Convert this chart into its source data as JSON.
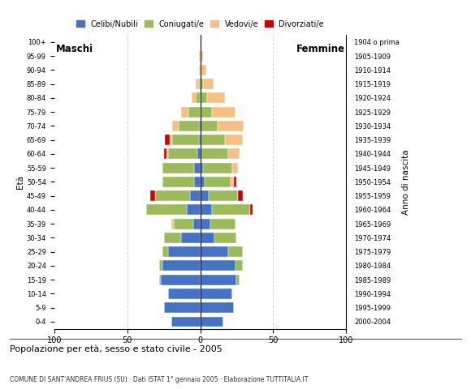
{
  "age_groups_bottom_top": [
    "0-4",
    "5-9",
    "10-14",
    "15-19",
    "20-24",
    "25-29",
    "30-34",
    "35-39",
    "40-44",
    "45-49",
    "50-54",
    "55-59",
    "60-64",
    "65-69",
    "70-74",
    "75-79",
    "80-84",
    "85-89",
    "90-94",
    "95-99",
    "100+"
  ],
  "birth_years_bottom_top": [
    "2000-2004",
    "1995-1999",
    "1990-1994",
    "1985-1989",
    "1980-1984",
    "1975-1979",
    "1970-1974",
    "1965-1969",
    "1960-1964",
    "1955-1959",
    "1950-1954",
    "1945-1949",
    "1940-1944",
    "1935-1939",
    "1930-1934",
    "1925-1929",
    "1920-1924",
    "1915-1919",
    "1910-1914",
    "1905-1909",
    "1904 o prima"
  ],
  "male_celibi": [
    20,
    25,
    22,
    27,
    26,
    22,
    13,
    5,
    9,
    7,
    4,
    4,
    2,
    1,
    1,
    0,
    0,
    0,
    0,
    0,
    0
  ],
  "male_coniugati": [
    0,
    0,
    0,
    1,
    2,
    4,
    12,
    13,
    28,
    24,
    22,
    22,
    20,
    18,
    14,
    8,
    3,
    1,
    0,
    0,
    0
  ],
  "male_vedovi": [
    0,
    0,
    0,
    0,
    0,
    0,
    0,
    2,
    0,
    0,
    0,
    0,
    1,
    2,
    4,
    5,
    3,
    2,
    1,
    1,
    0
  ],
  "male_divorziati": [
    0,
    0,
    0,
    0,
    0,
    0,
    0,
    0,
    0,
    3,
    0,
    0,
    2,
    3,
    0,
    0,
    0,
    0,
    0,
    0,
    0
  ],
  "fem_nubili": [
    16,
    23,
    22,
    25,
    24,
    19,
    10,
    7,
    8,
    6,
    3,
    2,
    1,
    1,
    0,
    0,
    0,
    0,
    0,
    0,
    0
  ],
  "fem_coniugate": [
    0,
    0,
    0,
    2,
    5,
    10,
    15,
    17,
    26,
    20,
    18,
    20,
    18,
    16,
    12,
    8,
    5,
    2,
    1,
    0,
    0
  ],
  "fem_vedove": [
    0,
    0,
    0,
    0,
    0,
    0,
    0,
    0,
    0,
    0,
    2,
    4,
    8,
    12,
    18,
    16,
    12,
    7,
    3,
    2,
    1
  ],
  "fem_divorziate": [
    0,
    0,
    0,
    0,
    0,
    0,
    0,
    0,
    2,
    3,
    2,
    0,
    0,
    0,
    0,
    0,
    0,
    0,
    0,
    0,
    0
  ],
  "colors": {
    "celibi": "#4472C4",
    "coniugati": "#9BBB59",
    "vedovi": "#F5C083",
    "divorziati": "#CC0000"
  },
  "xlim": 100,
  "title": "Popolazione per età, sesso e stato civile - 2005",
  "subtitle": "COMUNE DI SANT'ANDREA FRIUS (SU) · Dati ISTAT 1° gennaio 2005 · Elaborazione TUTTITALIA.IT",
  "ylabel_left": "Età",
  "ylabel_right": "Anno di nascita",
  "label_maschi": "Maschi",
  "label_femmine": "Femmine",
  "legend_labels": [
    "Celibi/Nubili",
    "Coniugati/e",
    "Vedovi/e",
    "Divorziati/e"
  ],
  "bg_color": "#FFFFFF",
  "bar_height": 0.75
}
